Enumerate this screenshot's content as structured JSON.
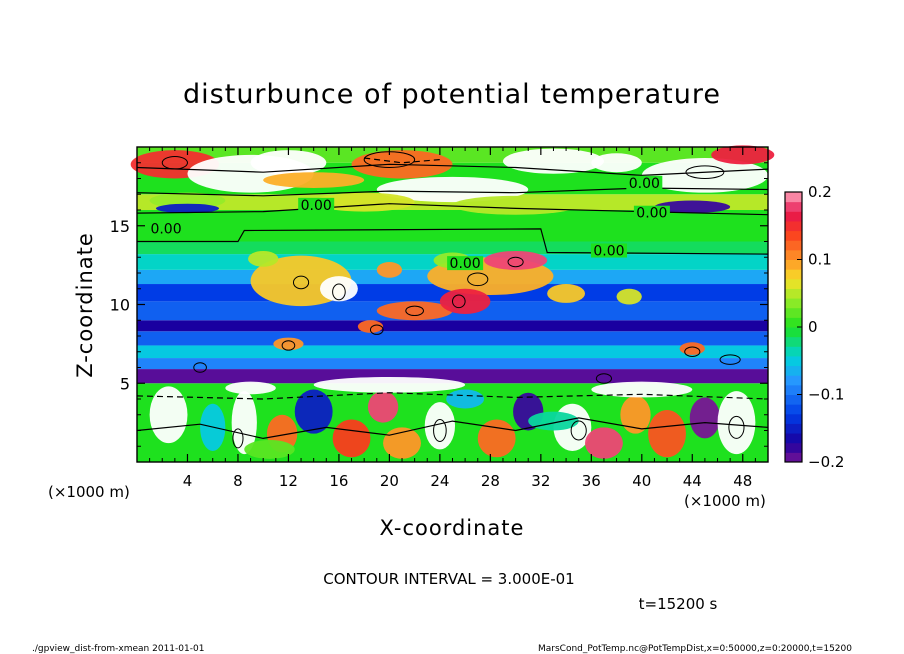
{
  "chart_data": {
    "type": "heatmap",
    "title": "disturbunce of potential temperature",
    "xlabel": "X-coordinate",
    "ylabel": "Z-coordinate",
    "x_unit": "(×1000 m)",
    "y_unit": "(×1000 m)",
    "xlim": [
      0,
      50
    ],
    "ylim": [
      0,
      20
    ],
    "xticks": [
      4,
      8,
      12,
      16,
      20,
      24,
      28,
      32,
      36,
      40,
      44,
      48
    ],
    "yticks": [
      5,
      10,
      15
    ],
    "colorbar": {
      "range": [
        -0.2,
        0.2
      ],
      "ticks": [
        {
          "value": 0.2,
          "label": "0.2"
        },
        {
          "value": 0.1,
          "label": "0.1"
        },
        {
          "value": 0,
          "label": "0"
        },
        {
          "value": -0.1,
          "label": "−0.1"
        },
        {
          "value": -0.2,
          "label": "−0.2"
        }
      ]
    },
    "contour_labels": [
      {
        "text": "0.00",
        "x": 2.3,
        "z": 14.7
      },
      {
        "text": "0.00",
        "x": 14.2,
        "z": 16.2
      },
      {
        "text": "0.00",
        "x": 40.2,
        "z": 17.6
      },
      {
        "text": "0.00",
        "x": 40.8,
        "z": 15.7
      },
      {
        "text": "0.00",
        "x": 37.4,
        "z": 13.3
      },
      {
        "text": "0.00",
        "x": 26.0,
        "z": 12.5
      }
    ],
    "contour_interval_text": "CONTOUR INTERVAL = 3.000E-01",
    "time_text": "t=15200 s"
  },
  "footer": {
    "left": "./gpview_dist-from-xmean  2011-01-01",
    "right": "MarsCond_PotTemp.nc@PotTempDist,x=0:50000,z=0:20000,t=15200"
  }
}
